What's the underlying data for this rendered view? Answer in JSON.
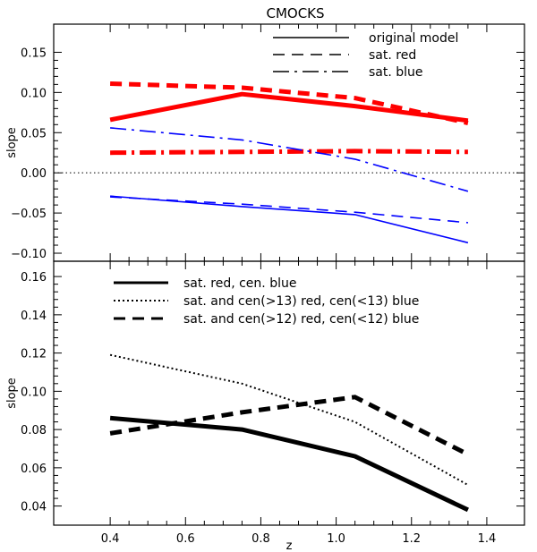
{
  "figure_title": "CMOCKS",
  "chart_data": [
    {
      "type": "line",
      "title": "CMOCKS",
      "xlabel": "",
      "ylabel": "slope",
      "xlim": [
        0.25,
        1.5
      ],
      "ylim": [
        -0.11,
        0.185
      ],
      "xticks": [
        0.4,
        0.6,
        0.8,
        1.0,
        1.2,
        1.4
      ],
      "yticks": [
        -0.1,
        -0.05,
        0.0,
        0.05,
        0.1,
        0.15
      ],
      "ytick_labels": [
        "−0.10",
        "−0.05",
        "0.00",
        "0.05",
        "0.10",
        "0.15"
      ],
      "reference_line": {
        "y": 0.0,
        "style": "dotted",
        "color": "#000000"
      },
      "legend": {
        "position": "top-right",
        "entries": [
          {
            "label": "original model",
            "style": "solid"
          },
          {
            "label": "sat. red",
            "style": "dashed"
          },
          {
            "label": "sat. blue",
            "style": "dashdot"
          }
        ]
      },
      "series": [
        {
          "name": "original model (red)",
          "color": "#ff0000",
          "style": "solid",
          "width": "thick",
          "x": [
            0.4,
            0.75,
            1.05,
            1.35
          ],
          "values": [
            0.066,
            0.098,
            0.083,
            0.065
          ]
        },
        {
          "name": "sat. red (red)",
          "color": "#ff0000",
          "style": "dashed",
          "width": "thick",
          "x": [
            0.4,
            0.75,
            1.05,
            1.35
          ],
          "values": [
            0.111,
            0.106,
            0.093,
            0.062
          ]
        },
        {
          "name": "sat. blue (red)",
          "color": "#ff0000",
          "style": "dashdot",
          "width": "thick",
          "x": [
            0.4,
            0.75,
            1.05,
            1.35
          ],
          "values": [
            0.025,
            0.026,
            0.027,
            0.026
          ]
        },
        {
          "name": "original model (blue)",
          "color": "#0000ff",
          "style": "solid",
          "width": "thin",
          "x": [
            0.4,
            0.75,
            1.05,
            1.35
          ],
          "values": [
            -0.029,
            -0.042,
            -0.052,
            -0.087
          ]
        },
        {
          "name": "sat. red (blue)",
          "color": "#0000ff",
          "style": "dashed",
          "width": "thin",
          "x": [
            0.4,
            0.75,
            1.05,
            1.35
          ],
          "values": [
            -0.03,
            -0.039,
            -0.049,
            -0.062
          ]
        },
        {
          "name": "sat. blue (blue)",
          "color": "#0000ff",
          "style": "dashdot",
          "width": "thin",
          "x": [
            0.4,
            0.75,
            1.05,
            1.35
          ],
          "values": [
            0.056,
            0.041,
            0.017,
            -0.023
          ]
        }
      ]
    },
    {
      "type": "line",
      "title": "",
      "xlabel": "z",
      "ylabel": "slope",
      "xlim": [
        0.25,
        1.5
      ],
      "ylim": [
        0.03,
        0.168
      ],
      "xticks": [
        0.4,
        0.6,
        0.8,
        1.0,
        1.2,
        1.4
      ],
      "yticks": [
        0.04,
        0.06,
        0.08,
        0.1,
        0.12,
        0.14,
        0.16
      ],
      "ytick_labels": [
        "0.04",
        "0.06",
        "0.08",
        "0.10",
        "0.12",
        "0.14",
        "0.16"
      ],
      "legend": {
        "position": "top-left",
        "entries": [
          {
            "label": "sat. red, cen. blue",
            "style": "solid"
          },
          {
            "label": "sat. and cen(>13) red, cen(<13) blue",
            "style": "dotted"
          },
          {
            "label": "sat. and cen(>12) red, cen(<12) blue",
            "style": "dashed"
          }
        ]
      },
      "series": [
        {
          "name": "sat. red, cen. blue",
          "color": "#000000",
          "style": "solid",
          "width": "thick",
          "x": [
            0.4,
            0.75,
            1.05,
            1.35
          ],
          "values": [
            0.086,
            0.08,
            0.066,
            0.038
          ]
        },
        {
          "name": "sat. and cen(>13) red, cen(<13) blue",
          "color": "#000000",
          "style": "dotted",
          "width": "medium",
          "x": [
            0.4,
            0.75,
            1.05,
            1.35
          ],
          "values": [
            0.119,
            0.104,
            0.084,
            0.051
          ]
        },
        {
          "name": "sat. and cen(>12) red, cen(<12) blue",
          "color": "#000000",
          "style": "dashed",
          "width": "thick",
          "x": [
            0.4,
            0.75,
            1.05,
            1.35
          ],
          "values": [
            0.078,
            0.089,
            0.097,
            0.067
          ]
        }
      ]
    }
  ]
}
